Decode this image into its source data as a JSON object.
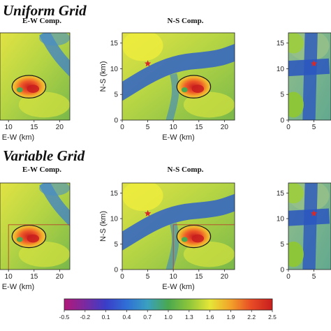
{
  "chart_data": {
    "type": "heatmap",
    "sections": [
      {
        "title": "Uniform Grid",
        "panels": [
          {
            "component": "E-W Comp.",
            "xlabel": "E-W (km)",
            "ylabel": "",
            "xticks": [
              "10",
              "15",
              "20"
            ],
            "yticks": []
          },
          {
            "component": "N-S Comp.",
            "xlabel": "E-W (km)",
            "ylabel": "N-S (km)",
            "xticks": [
              "0",
              "5",
              "10",
              "15",
              "20"
            ],
            "yticks": [
              "0",
              "5",
              "10",
              "15"
            ]
          },
          {
            "component": "",
            "xlabel": "",
            "ylabel": "",
            "xticks": [
              "0",
              "5"
            ],
            "yticks": [
              "0",
              "5",
              "10",
              "15"
            ]
          }
        ]
      },
      {
        "title": "Variable Grid",
        "panels": [
          {
            "component": "E-W Comp.",
            "xlabel": "E-W (km)",
            "ylabel": "",
            "xticks": [
              "10",
              "15",
              "20"
            ],
            "yticks": []
          },
          {
            "component": "N-S Comp.",
            "xlabel": "E-W (km)",
            "ylabel": "N-S (km)",
            "xticks": [
              "0",
              "5",
              "10",
              "15",
              "20"
            ],
            "yticks": [
              "0",
              "5",
              "10",
              "15"
            ]
          },
          {
            "component": "",
            "xlabel": "",
            "ylabel": "",
            "xticks": [
              "0",
              "5"
            ],
            "yticks": [
              "0",
              "5",
              "10",
              "15"
            ]
          }
        ]
      }
    ],
    "xlim": [
      0,
      22
    ],
    "ylim": [
      0,
      17
    ],
    "star_location": {
      "x": 5,
      "y": 11
    },
    "ellipse_center": {
      "x": 14,
      "y": 6.5
    },
    "colorbar": {
      "ticks": [
        "-0.5",
        "-0.2",
        "0.1",
        "0.4",
        "0.7",
        "1.0",
        "1.3",
        "1.6",
        "1.9",
        "2.2",
        "2.5"
      ],
      "range": [
        -0.5,
        2.5
      ],
      "colors": [
        "#b2187a",
        "#7a2aa0",
        "#3a3ec8",
        "#2f6fd6",
        "#3aa0c0",
        "#4aa84e",
        "#8ec63a",
        "#e6e637",
        "#f2a22a",
        "#e84a25",
        "#c81e1e"
      ]
    }
  }
}
